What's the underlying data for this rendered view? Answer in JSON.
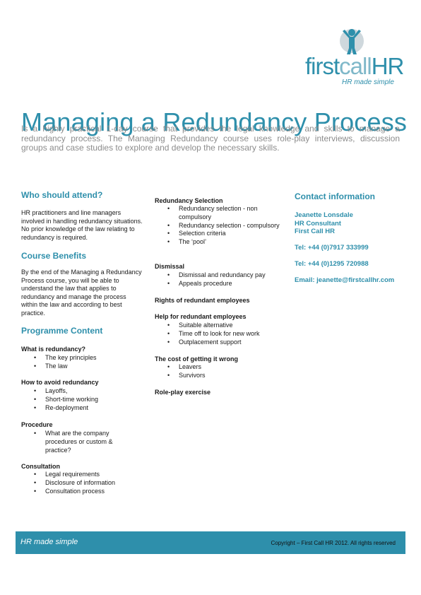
{
  "logo": {
    "word_first": "first",
    "word_call": "call",
    "word_hr": "HR",
    "tagline": "HR made simple",
    "colors": {
      "primary": "#2e8fab",
      "light": "#7fb8c9"
    },
    "icon": "person-arms-up-icon"
  },
  "title": "Managing a Redundancy Process",
  "intro": "Is a highly practical 1-day course that provides the legal knowledge and skills to manage a redundancy process. The Managing Redundancy course uses role-play interviews, discussion groups and case studies to explore and develop the necessary skills.",
  "who": {
    "heading": "Who should attend?",
    "text": "HR practitioners and line managers involved in handling redundancy situations. No prior knowledge of the law relating to redundancy is required."
  },
  "benefits": {
    "heading": "Course Benefits",
    "text": "By the end of the Managing a Redundancy Process course, you will be able to understand the law that applies to redundancy and manage the process within the law and according to best practice."
  },
  "programme": {
    "heading": "Programme Content",
    "sections": [
      {
        "title": "What is redundancy?",
        "items": [
          "The key principles",
          "The law"
        ]
      },
      {
        "title": "How to avoid redundancy",
        "items": [
          "Layoffs,",
          "Short-time working",
          "Re-deployment"
        ]
      },
      {
        "title": "Procedure",
        "items": [
          "What are the company procedures or custom & practice?"
        ]
      },
      {
        "title": "Consultation",
        "items": [
          "Legal requirements",
          "Disclosure of information",
          "Consultation process"
        ]
      },
      {
        "title": "Redundancy Selection",
        "items": [
          "Redundancy selection - non compulsory",
          "Redundancy selection - compulsory",
          "Selection criteria",
          "The ‘pool’"
        ]
      },
      {
        "title": "Dismissal",
        "items": [
          "Dismissal and redundancy pay",
          "Appeals procedure"
        ]
      },
      {
        "title": "Rights of redundant employees",
        "items": []
      },
      {
        "title": "Help for redundant employees",
        "items": [
          "Suitable alternative",
          "Time off to look for new work",
          "Outplacement support"
        ]
      },
      {
        "title": "The cost of getting it wrong",
        "items": [
          "Leavers",
          "Survivors"
        ]
      },
      {
        "title": "Role-play exercise",
        "items": []
      }
    ]
  },
  "contact": {
    "heading": "Contact information",
    "name": "Jeanette Lonsdale",
    "role": "HR Consultant",
    "company": "First Call HR",
    "tel1": "Tel: +44 (0)7917 333999",
    "tel2": "Tel: +44 (0)1295 720988",
    "email": "Email: jeanette@firstcallhr.com"
  },
  "footer": {
    "tagline": "HR made simple",
    "copyright": "Copyright – First Call HR 2012. All rights reserved"
  }
}
